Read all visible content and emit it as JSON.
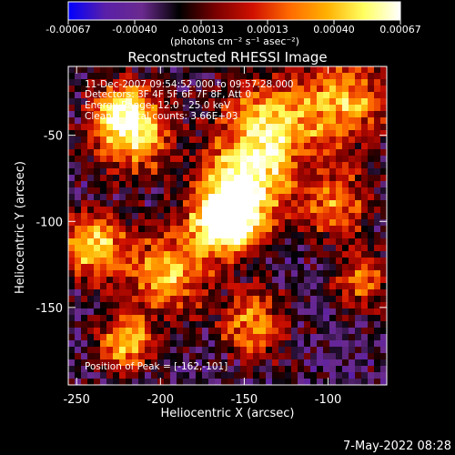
{
  "chart_data": {
    "type": "heatmap",
    "title": "Reconstructed RHESSI Image",
    "xlabel": "Heliocentric X (arcsec)",
    "ylabel": "Heliocentric Y (arcsec)",
    "xlim": [
      -255,
      -65
    ],
    "ylim": [
      -195,
      -10
    ],
    "x_ticks": [
      -250,
      -200,
      -150,
      -100
    ],
    "y_ticks": [
      -150,
      -100,
      -50
    ],
    "colorbar": {
      "range": [
        -0.00067,
        0.00067
      ],
      "ticks": [
        "-0.00067",
        "-0.00040",
        "-0.00013",
        "0.00013",
        "0.00040",
        "0.00067"
      ],
      "unit_label": "(photons cm⁻² s⁻¹ asec⁻²)",
      "colors": [
        "#0000ff",
        "#5a1fa8",
        "#6a2a8e",
        "#000000",
        "#7a0000",
        "#d01000",
        "#ff6a00",
        "#ffb000",
        "#ffff60",
        "#ffffff"
      ]
    },
    "annotations": {
      "time_range": "11-Dec-2007 09:54:52.000 to 09:57:28.000",
      "detectors": "Detectors: 3F 4F 5F 6F 7F 8F, Att 0",
      "energy": "Energy Range: 12.0 - 25.0 keV",
      "clean_line": "Clean     Total counts: 3.66E+03",
      "peak": "Position of Peak = [-162,-101]"
    },
    "peak_position": [
      -162,
      -101
    ],
    "hotspots": [
      {
        "x": -162,
        "y": -101,
        "amp": 1.0,
        "sigma": 14
      },
      {
        "x": -150,
        "y": -80,
        "amp": 0.8,
        "sigma": 18
      },
      {
        "x": -135,
        "y": -45,
        "amp": 0.75,
        "sigma": 20
      },
      {
        "x": -215,
        "y": -50,
        "amp": 0.7,
        "sigma": 16
      },
      {
        "x": -225,
        "y": -35,
        "amp": 0.6,
        "sigma": 12
      },
      {
        "x": -90,
        "y": -30,
        "amp": 0.65,
        "sigma": 18
      },
      {
        "x": -240,
        "y": -115,
        "amp": 0.75,
        "sigma": 14
      },
      {
        "x": -195,
        "y": -130,
        "amp": 0.7,
        "sigma": 16
      },
      {
        "x": -220,
        "y": -170,
        "amp": 0.75,
        "sigma": 12
      },
      {
        "x": -145,
        "y": -160,
        "amp": 0.6,
        "sigma": 14
      },
      {
        "x": -95,
        "y": -90,
        "amp": 0.55,
        "sigma": 14
      },
      {
        "x": -80,
        "y": -135,
        "amp": 0.5,
        "sigma": 12
      }
    ]
  },
  "footer": {
    "timestamp": "7-May-2022 08:28"
  }
}
